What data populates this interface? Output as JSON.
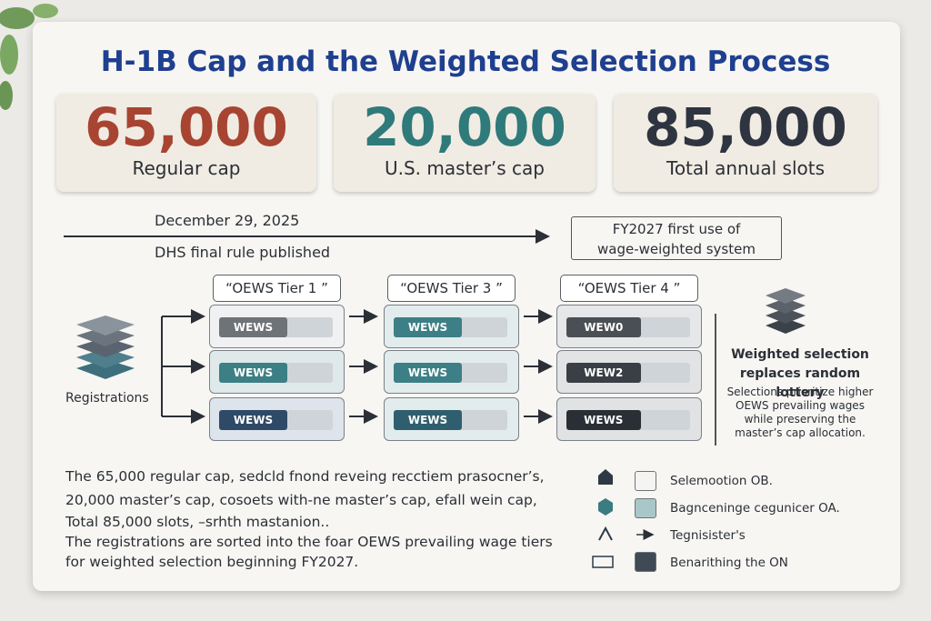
{
  "header": {
    "title": "H-1B Cap and the Weighted Selection Process"
  },
  "stats": [
    {
      "value": "65,000",
      "label": "Regular cap"
    },
    {
      "value": "20,000",
      "label": "U.S. master’s cap"
    },
    {
      "value": "85,000",
      "label": "Total annual slots"
    }
  ],
  "timeline": {
    "date": "December 29, 2025",
    "event": "DHS final rule published",
    "milestone": "FY2027 first use of wage-weighted system"
  },
  "source": {
    "label": "Registrations"
  },
  "tiers": [
    {
      "title": "“OEWS Tier 1 ”",
      "rows": [
        "WEWS",
        "WEWS",
        "WEWS"
      ]
    },
    {
      "title": "“OEWS Tier 3 ”",
      "rows": [
        "WEWS",
        "WEWS",
        "WEWS"
      ]
    },
    {
      "title": "“OEWS Tier 4 ”",
      "rows": [
        "WEW0",
        "WEW2",
        "WEWS"
      ]
    }
  ],
  "outcome": {
    "heading": "Weighted selection replaces random lottery",
    "body": "Selections prioritize higher OEWS prevailing wages while preserving the master’s cap allocation."
  },
  "notes": [
    "The 65,000 regular cap,  sedcld fnond reveing recctiem prasocner’s,",
    "20,000 master’s cap,  cosoets with-ne master’s cap,  efall wein cap,",
    "Total 85,000 slots, –srhth mastanion..",
    "The registrations are sorted into the foar OEWS prevailing wage tiers",
    "for weighted selection beginning FY2027."
  ],
  "legend": [
    {
      "label": "Selemootion OB."
    },
    {
      "label": "Bagnceninge cegunicer OA."
    },
    {
      "label": "Tegnisister's"
    },
    {
      "label": "Benarithing the ON"
    }
  ]
}
